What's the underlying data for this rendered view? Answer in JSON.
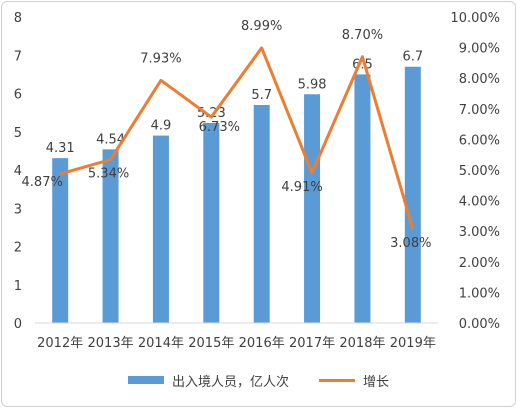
{
  "chart_data": {
    "type": "bar+line",
    "categories": [
      "2012年",
      "2013年",
      "2014年",
      "2015年",
      "2016年",
      "2017年",
      "2018年",
      "2019年"
    ],
    "series": [
      {
        "name": "出入境人员，亿人次",
        "type": "bar",
        "axis": "left",
        "values": [
          4.31,
          4.54,
          4.9,
          5.23,
          5.7,
          5.98,
          6.5,
          6.7
        ],
        "labels": [
          "4.31",
          "4.54",
          "4.9",
          "5.23",
          "5.7",
          "5.98",
          "6.5",
          "6.7"
        ],
        "color": "#5b9bd5"
      },
      {
        "name": "增长",
        "type": "line",
        "axis": "right",
        "values": [
          4.87,
          5.34,
          7.93,
          6.73,
          8.99,
          4.91,
          8.7,
          3.08
        ],
        "labels": [
          "4.87%",
          "5.34%",
          "7.93%",
          "6.73%",
          "8.99%",
          "4.91%",
          "8.70%",
          "3.08%"
        ],
        "color": "#ed7d31"
      }
    ],
    "y_left": {
      "min": 0,
      "max": 8,
      "ticks": [
        "0",
        "1",
        "2",
        "3",
        "4",
        "5",
        "6",
        "7",
        "8"
      ]
    },
    "y_right": {
      "min": 0,
      "max": 10,
      "ticks": [
        "0.00%",
        "1.00%",
        "2.00%",
        "3.00%",
        "4.00%",
        "5.00%",
        "6.00%",
        "7.00%",
        "8.00%",
        "9.00%",
        "10.00%"
      ]
    },
    "legend": {
      "position": "bottom",
      "entries": [
        "出入境人员，亿人次",
        "增长"
      ]
    },
    "grid": false
  }
}
